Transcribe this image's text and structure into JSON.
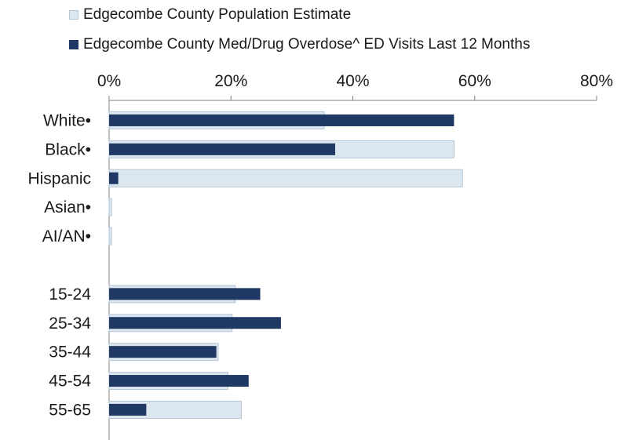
{
  "chart_data": {
    "type": "bar",
    "orientation": "horizontal",
    "categories": [
      "White•",
      "Black•",
      "Hispanic",
      "Asian•",
      "AI/AN•",
      "",
      "15-24",
      "25-34",
      "35-44",
      "45-54",
      "55-65"
    ],
    "series": [
      {
        "name": "Edgecombe County Population Estimate",
        "color": "#dce6ee",
        "values": [
          35.3,
          56.6,
          58.0,
          0.4,
          0.4,
          null,
          20.7,
          20.2,
          17.9,
          19.5,
          21.7
        ]
      },
      {
        "name": "Edgecombe County Med/Drug Overdose^ ED Visits Last 12 Months",
        "color": "#1f3864",
        "values": [
          56.6,
          37.1,
          1.5,
          0,
          0,
          null,
          24.8,
          28.2,
          17.6,
          22.9,
          6.1
        ]
      }
    ],
    "x_ticks": [
      "0%",
      "20%",
      "40%",
      "60%",
      "80%"
    ],
    "xlim": [
      0,
      80
    ],
    "axis_position": "top",
    "legend_position": "top-left",
    "grid": false
  }
}
